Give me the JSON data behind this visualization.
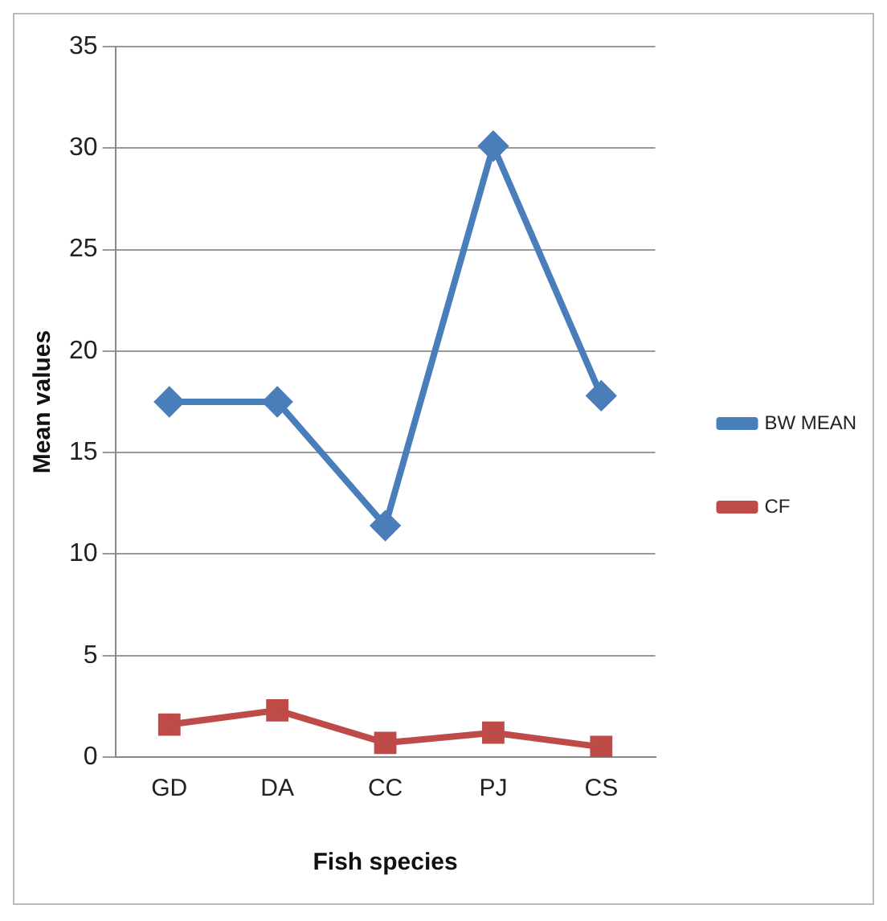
{
  "chart_data": {
    "type": "line",
    "xlabel": "Fish species",
    "ylabel": "Mean values",
    "categories": [
      "GD",
      "DA",
      "CC",
      "PJ",
      "CS"
    ],
    "series": [
      {
        "name": "BW MEAN",
        "color": "#4a7ebb",
        "marker": "diamond",
        "values": [
          17.5,
          17.5,
          11.4,
          30.1,
          17.8
        ]
      },
      {
        "name": "CF",
        "color": "#be4b48",
        "marker": "square",
        "values": [
          1.6,
          2.3,
          0.7,
          1.2,
          0.5
        ]
      }
    ],
    "ylim": [
      0,
      35
    ],
    "yticks": [
      0,
      5,
      10,
      15,
      20,
      25,
      30,
      35
    ],
    "grid": "y",
    "legend": "right",
    "line_style": "solid"
  }
}
